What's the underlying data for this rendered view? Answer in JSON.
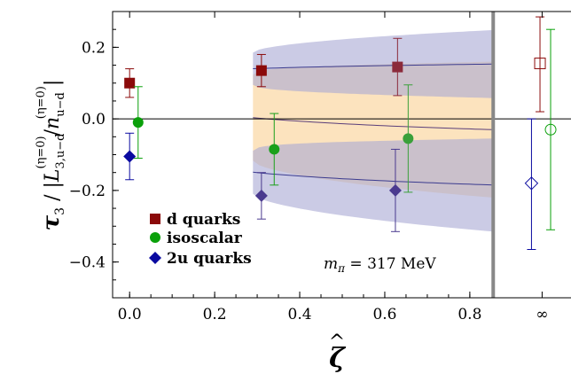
{
  "chart_data": {
    "type": "scatter",
    "xlabel": "ζ̂",
    "ylabel": "τ3 / |L(η=0)3,u−d / n(η=0)u−d|",
    "xlim": [
      -0.04,
      1.04
    ],
    "ylim": [
      -0.5,
      0.3
    ],
    "x_ticks": [
      {
        "value": 0.0,
        "label": "0.0"
      },
      {
        "value": 0.2,
        "label": "0.2"
      },
      {
        "value": 0.4,
        "label": "0.4"
      },
      {
        "value": 0.6,
        "label": "0.6"
      },
      {
        "value": 0.8,
        "label": "0.8"
      },
      {
        "value": 0.97,
        "label": "∞"
      }
    ],
    "y_ticks": [
      {
        "value": 0.2,
        "label": "0.2"
      },
      {
        "value": 0.0,
        "label": "0.0"
      },
      {
        "value": -0.2,
        "label": "−0.2"
      },
      {
        "value": -0.4,
        "label": "−0.4"
      }
    ],
    "divider_x": 0.855,
    "zero_line": 0.0,
    "annotation": "mπ = 317 MeV",
    "legend_position": "bottom-left",
    "series": [
      {
        "name": "d quarks",
        "marker": "square",
        "color": "#8b0a0a",
        "points": [
          {
            "x": 0.0,
            "y": 0.1,
            "yerr": 0.04
          },
          {
            "x": 0.31,
            "y": 0.135,
            "yerr": 0.045
          },
          {
            "x": 0.63,
            "y": 0.145,
            "yerr": 0.08
          }
        ],
        "infinity_point": {
          "x": 0.965,
          "y": 0.155,
          "yerr_up": 0.13,
          "yerr_down": 0.135
        },
        "fit": {
          "a": 0.155,
          "b": 0.012,
          "x_from": 0.29,
          "x_to": 0.855
        },
        "band_color": "#a8a8d4",
        "band_halfwidth": {
          "at_from": 0.045,
          "at_to": 0.095
        }
      },
      {
        "name": "isoscalar",
        "marker": "circle",
        "color": "#0aa00a",
        "points": [
          {
            "x": 0.02,
            "y": -0.01,
            "yerr": 0.1
          },
          {
            "x": 0.34,
            "y": -0.085,
            "yerr": 0.1
          },
          {
            "x": 0.655,
            "y": -0.055,
            "yerr": 0.15
          }
        ],
        "infinity_point": {
          "x": 0.99,
          "y": -0.03,
          "yerr_up": 0.28,
          "yerr_down": 0.28
        },
        "fit": {
          "a": -0.035,
          "b": -0.031,
          "x_from": 0.29,
          "x_to": 0.855
        },
        "band_color": "#fbd9a8",
        "band_halfwidth": {
          "at_from": 0.12,
          "at_to": 0.19
        }
      },
      {
        "name": "2u quarks",
        "marker": "diamond",
        "color": "#0a0aa0",
        "points": [
          {
            "x": 0.0,
            "y": -0.105,
            "yerr": 0.065
          },
          {
            "x": 0.31,
            "y": -0.215,
            "yerr": 0.065
          },
          {
            "x": 0.625,
            "y": -0.2,
            "yerr": 0.115
          }
        ],
        "infinity_point": {
          "x": 0.945,
          "y": -0.18,
          "yerr_up": 0.18,
          "yerr_down": 0.185
        },
        "fit": {
          "a": -0.19,
          "b": -0.033,
          "x_from": 0.29,
          "x_to": 0.855
        },
        "band_color": "#a8a8d4",
        "band_halfwidth": {
          "at_from": 0.06,
          "at_to": 0.13
        }
      }
    ]
  }
}
